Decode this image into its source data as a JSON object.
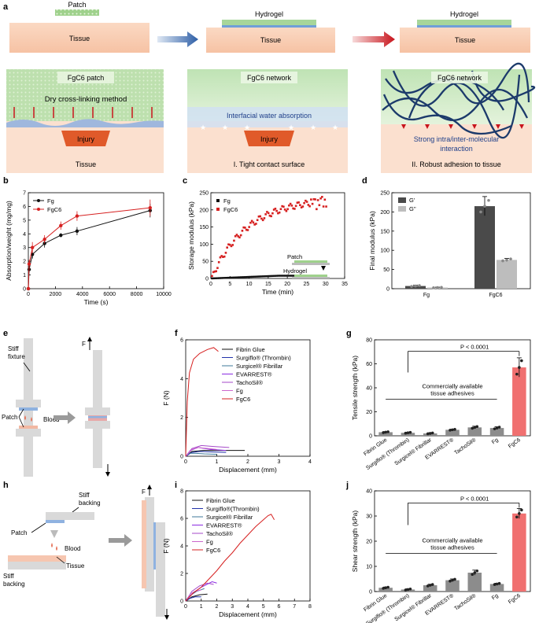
{
  "panel_labels": [
    "a",
    "b",
    "c",
    "d",
    "e",
    "f",
    "g",
    "h",
    "i",
    "j"
  ],
  "panel_a": {
    "top_labels": [
      "Patch",
      "Hydrogel",
      "Hydrogel"
    ],
    "tissue_label": "Tissue",
    "box1": {
      "title": "FgC6 patch",
      "method": "Dry cross-linking method",
      "injury": "Injury",
      "tissue": "Tissue"
    },
    "box2": {
      "title": "FgC6 network",
      "absorb": "Interfacial water absorption",
      "injury": "Injury",
      "caption": "I. Tight contact surface"
    },
    "box3": {
      "title": "FgC6 network",
      "interaction_line1": "Strong intra/inter-molecular",
      "interaction_line2": "interaction",
      "caption": "II. Robust adhesion to tissue"
    }
  },
  "panel_e": {
    "labels": {
      "fixture1": "Stiff",
      "fixture2": "fixture",
      "patch": "Patch",
      "blood": "Blood",
      "force": "F"
    }
  },
  "panel_h": {
    "labels": {
      "backing_top1": "Stiff",
      "backing_top2": "backing",
      "patch": "Patch",
      "blood": "Blood",
      "backing_bot1": "Stiff",
      "backing_bot2": "backing",
      "tissue": "Tissue",
      "force": "F"
    }
  },
  "colors": {
    "fg": "#111111",
    "fgc6": "#d62020",
    "gprime": "#4a4a4a",
    "gdouble": "#bdbdbd",
    "bar_gray": "#8c8c8c",
    "bar_red": "#f07070"
  },
  "chart_data": [
    {
      "id": "b",
      "type": "line",
      "xlabel": "Time (s)",
      "ylabel": "Absorption/weight (mg/mg)",
      "xlim": [
        0,
        10000
      ],
      "ylim": [
        0,
        7
      ],
      "xticks": [
        0,
        2000,
        4000,
        6000,
        8000,
        10000
      ],
      "yticks": [
        0,
        1,
        2,
        3,
        4,
        5,
        6,
        7
      ],
      "series": [
        {
          "name": "Fg",
          "x": [
            0,
            60,
            300,
            1200,
            2400,
            3600,
            9000
          ],
          "y": [
            0,
            1.4,
            2.5,
            3.3,
            3.9,
            4.2,
            5.7
          ],
          "err": [
            0,
            0.2,
            0.3,
            0.3,
            0.15,
            0.3,
            0.5
          ]
        },
        {
          "name": "FgC6",
          "x": [
            0,
            60,
            300,
            1200,
            2400,
            3600,
            9000
          ],
          "y": [
            0,
            1.8,
            3.0,
            3.6,
            4.6,
            5.3,
            5.9
          ],
          "err": [
            0,
            0.3,
            0.4,
            0.3,
            0.3,
            0.35,
            0.6
          ]
        }
      ]
    },
    {
      "id": "c",
      "type": "scatter",
      "xlabel": "Time (min)",
      "ylabel": "Storage modulus (kPa)",
      "xlim": [
        0,
        35
      ],
      "ylim": [
        0,
        250
      ],
      "xticks": [
        0,
        5,
        10,
        15,
        20,
        25,
        30,
        35
      ],
      "yticks": [
        0,
        50,
        100,
        150,
        200,
        250
      ],
      "series": [
        {
          "name": "Fg"
        },
        {
          "name": "FgC6"
        }
      ],
      "inset": {
        "patch": "Patch",
        "hydrogel": "Hydrogel"
      }
    },
    {
      "id": "d",
      "type": "bar",
      "ylabel": "Final modulus (kPa)",
      "ylim": [
        0,
        250
      ],
      "yticks": [
        0,
        50,
        100,
        150,
        200,
        250
      ],
      "categories": [
        "Fg",
        "FgC6"
      ],
      "series": [
        {
          "name": "G'",
          "values": [
            7,
            215
          ],
          "err": [
            2,
            25
          ]
        },
        {
          "name": "G''",
          "values": [
            3,
            75
          ],
          "err": [
            1,
            4
          ]
        }
      ]
    },
    {
      "id": "f",
      "type": "line",
      "xlabel": "Displacement (mm)",
      "ylabel": "F (N)",
      "xlim": [
        0,
        4
      ],
      "ylim": [
        0,
        6
      ],
      "xticks": [
        0,
        1,
        2,
        3,
        4
      ],
      "yticks": [
        0,
        2,
        4,
        6
      ],
      "series": [
        {
          "name": "Fibrin Glue",
          "x": [
            0,
            0.2,
            0.6,
            1.2,
            1.9
          ],
          "y": [
            0,
            0.25,
            0.3,
            0.3,
            0.3
          ]
        },
        {
          "name": "Surgiflo® (Thrombin)",
          "x": [
            0,
            0.2,
            0.5,
            0.9,
            1.3
          ],
          "y": [
            0,
            0.2,
            0.25,
            0.22,
            0.2
          ]
        },
        {
          "name": "Surgicel® Fibrillar",
          "x": [
            0,
            0.1,
            0.3,
            0.6,
            1.0
          ],
          "y": [
            0,
            0.15,
            0.15,
            0.12,
            0.1
          ]
        },
        {
          "name": "EVARREST®",
          "x": [
            0,
            0.15,
            0.4,
            0.8,
            1.3
          ],
          "y": [
            0,
            0.3,
            0.45,
            0.35,
            0.3
          ]
        },
        {
          "name": "TachoSil®",
          "x": [
            0,
            0.2,
            0.5,
            0.9,
            1.4
          ],
          "y": [
            0,
            0.4,
            0.55,
            0.5,
            0.45
          ]
        },
        {
          "name": "Fg",
          "x": [
            0,
            0.2,
            0.4,
            0.7,
            1.0
          ],
          "y": [
            0,
            0.35,
            0.45,
            0.4,
            0.35
          ]
        },
        {
          "name": "FgC6",
          "x": [
            0,
            0.05,
            0.12,
            0.25,
            0.45,
            0.7,
            0.9,
            1.05
          ],
          "y": [
            0,
            2.8,
            4.3,
            5.0,
            5.3,
            5.5,
            5.6,
            5.4
          ]
        }
      ]
    },
    {
      "id": "g",
      "type": "bar",
      "ylabel": "Tensile strength (kPa)",
      "ylim": [
        0,
        80
      ],
      "yticks": [
        0,
        20,
        40,
        60,
        80
      ],
      "categories": [
        "Fibrin Glue",
        "Surgiflo® (Thrombin)",
        "Surgicel® Fibrillar",
        "EVARREST®",
        "TachoSil®",
        "Fg",
        "FgC6"
      ],
      "values": [
        3,
        2.5,
        2,
        5,
        7,
        6.5,
        57
      ],
      "err": [
        0.5,
        0.5,
        0.5,
        0.5,
        1,
        1,
        8
      ],
      "annotation": "P < 0.0001",
      "group_label_line1": "Commercially available",
      "group_label_line2": "tissue adhesives"
    },
    {
      "id": "i",
      "type": "line",
      "xlabel": "Displacement (mm)",
      "ylabel": "F (N)",
      "xlim": [
        0,
        8
      ],
      "ylim": [
        0,
        8
      ],
      "xticks": [
        0,
        1,
        2,
        3,
        4,
        5,
        6,
        7,
        8
      ],
      "yticks": [
        0,
        2,
        4,
        6,
        8
      ],
      "series": [
        {
          "name": "Fibrin Glue",
          "x": [
            0,
            0.4,
            0.9,
            1.4
          ],
          "y": [
            0,
            0.3,
            0.45,
            0.5
          ]
        },
        {
          "name": "Surgiflo®(Thrombin)",
          "x": [
            0,
            0.3,
            0.6,
            1.0
          ],
          "y": [
            0,
            0.2,
            0.3,
            0.3
          ]
        },
        {
          "name": "Surgicel® Fibrillar",
          "x": [
            0,
            0.3,
            0.7,
            1.2
          ],
          "y": [
            0,
            0.4,
            0.7,
            0.9
          ]
        },
        {
          "name": "EVARREST®",
          "x": [
            0,
            0.5,
            1.0,
            1.7,
            2.0
          ],
          "y": [
            0,
            0.6,
            1.0,
            1.4,
            1.3
          ]
        },
        {
          "name": "TachoSil®",
          "x": [
            0,
            0.4,
            0.9,
            1.4,
            1.8
          ],
          "y": [
            0,
            0.7,
            1.1,
            1.3,
            1.2
          ]
        },
        {
          "name": "Fg",
          "x": [
            0,
            0.3,
            0.6,
            1.0
          ],
          "y": [
            0,
            0.5,
            0.7,
            0.8
          ]
        },
        {
          "name": "FgC6",
          "x": [
            0,
            0.5,
            1.0,
            1.5,
            2.0,
            2.5,
            3.0,
            3.5,
            4.0,
            4.5,
            5.0,
            5.3,
            5.5,
            5.7
          ],
          "y": [
            0,
            0.6,
            1.0,
            1.6,
            2.2,
            2.9,
            3.5,
            4.2,
            4.8,
            5.4,
            5.9,
            6.2,
            6.3,
            5.9
          ]
        }
      ]
    },
    {
      "id": "j",
      "type": "bar",
      "ylabel": "Shear strength (kPa)",
      "ylim": [
        0,
        40
      ],
      "yticks": [
        0,
        10,
        20,
        30,
        40
      ],
      "categories": [
        "Fibrin Glue",
        "Surgiflo® (Thrombin)",
        "Surgicel® Fibrillar",
        "EVARREST®",
        "TachoSil®",
        "Fg",
        "FgC6"
      ],
      "values": [
        1.5,
        0.8,
        2.5,
        4.5,
        7.5,
        3,
        31
      ],
      "err": [
        0.3,
        0.3,
        0.4,
        0.5,
        1,
        0.3,
        2
      ],
      "annotation": "P < 0.0001",
      "group_label_line1": "Commercially available",
      "group_label_line2": "tissue adhesives"
    }
  ]
}
